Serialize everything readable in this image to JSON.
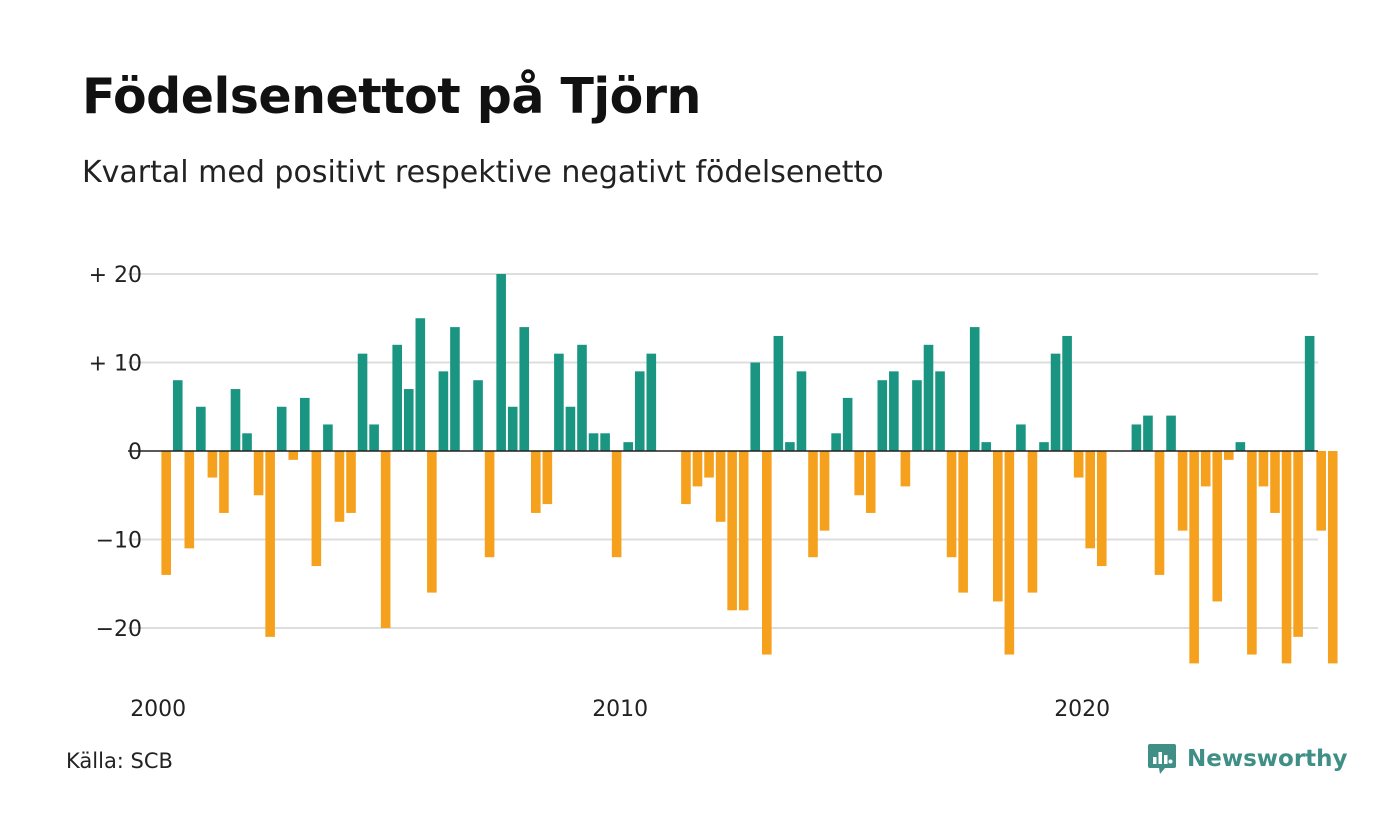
{
  "title": "Födelsenettot på Tjörn",
  "subtitle": "Kvartal med positivt respektive negativt födelsenetto",
  "source": "Källa: SCB",
  "brand": {
    "name": "Newsworthy",
    "icon": "newsworthy-logo-icon",
    "color": "#3f8f86"
  },
  "colors": {
    "positive": "#1a9582",
    "negative": "#f5a11d",
    "grid": "#dddddd",
    "zero_line": "#222222"
  },
  "chart_data": {
    "type": "bar",
    "title": "Födelsenettot på Tjörn",
    "subtitle": "Kvartal med positivt respektive negativt födelsenetto",
    "x_start": "2000 Q1",
    "x_ticks": [
      {
        "label": "2000",
        "index": 0
      },
      {
        "label": "2010",
        "index": 40
      },
      {
        "label": "2020",
        "index": 80
      }
    ],
    "y_ticks": [
      {
        "value": 20,
        "label": "+ 20"
      },
      {
        "value": 10,
        "label": "+ 10"
      },
      {
        "value": 0,
        "label": "0"
      },
      {
        "value": -10,
        "label": "−10"
      },
      {
        "value": -20,
        "label": "−20"
      }
    ],
    "ylim": [
      -25,
      20
    ],
    "grid": true,
    "values": [
      -14,
      8,
      -11,
      5,
      -3,
      -7,
      7,
      2,
      -5,
      -21,
      5,
      -1,
      6,
      -13,
      3,
      -8,
      -7,
      11,
      3,
      -20,
      12,
      7,
      15,
      -16,
      9,
      14,
      0,
      8,
      -12,
      20,
      5,
      14,
      -7,
      -6,
      11,
      5,
      12,
      2,
      2,
      -12,
      1,
      9,
      11,
      0,
      0,
      -6,
      -4,
      -3,
      -8,
      -18,
      -18,
      10,
      -23,
      13,
      1,
      9,
      -12,
      -9,
      2,
      6,
      -5,
      -7,
      8,
      9,
      -4,
      8,
      12,
      9,
      -12,
      -16,
      14,
      1,
      -17,
      -23,
      3,
      -16,
      1,
      11,
      13,
      -3,
      -11,
      -13,
      0,
      0,
      3,
      4,
      -14,
      4,
      -9,
      -24,
      -4,
      -17,
      -1,
      1,
      -23,
      -4,
      -7,
      -24,
      -21,
      13,
      -9,
      -24
    ]
  }
}
